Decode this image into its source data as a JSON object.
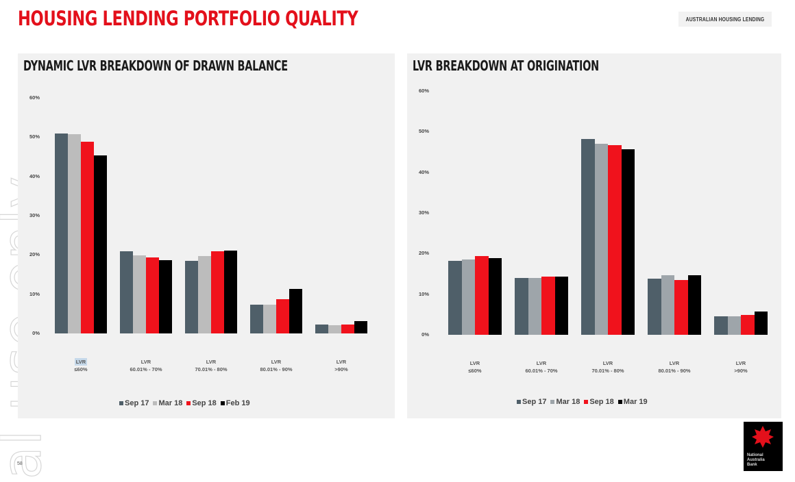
{
  "header": {
    "title": "HOUSING LENDING PORTFOLIO QUALITY",
    "section_tag": "AUSTRALIAN HOUSING LENDING"
  },
  "watermark": "al use only",
  "page_number": "58",
  "logo": {
    "icon": "star-icon",
    "text_lines": [
      "National",
      "Australia",
      "Bank"
    ],
    "color": "#e3101b"
  },
  "colors": {
    "series": [
      "#4f5f69",
      "#bcbcbc",
      "#f0121c",
      "#000000"
    ],
    "series_right": [
      "#4f5f69",
      "#9ea5aa",
      "#f0121c",
      "#000000"
    ],
    "title": "#e3101b",
    "panel_bg": "#f1f1f1"
  },
  "chart_data": [
    {
      "type": "bar",
      "title": "DYNAMIC LVR BREAKDOWN OF DRAWN BALANCE",
      "xlabel": "",
      "ylabel": "",
      "ylim": [
        0,
        60
      ],
      "yticks": [
        "0%",
        "10%",
        "20%",
        "30%",
        "40%",
        "50%",
        "60%"
      ],
      "grid": false,
      "legend_position": "bottom",
      "categories": [
        {
          "line1": "LVR",
          "line2": "≤60%"
        },
        {
          "line1": "LVR",
          "line2": "60.01% - 70%"
        },
        {
          "line1": "LVR",
          "line2": "70.01% - 80%"
        },
        {
          "line1": "LVR",
          "line2": "80.01% - 90%"
        },
        {
          "line1": "LVR",
          "line2": ">90%"
        }
      ],
      "series": [
        {
          "name": "Sep 17",
          "values": [
            50.9,
            20.9,
            18.5,
            7.3,
            2.3
          ]
        },
        {
          "name": "Mar 18",
          "values": [
            50.7,
            19.9,
            19.7,
            7.3,
            2.1
          ]
        },
        {
          "name": "Sep 18",
          "values": [
            48.8,
            19.4,
            20.9,
            8.7,
            2.3
          ]
        },
        {
          "name": "Feb 19",
          "values": [
            45.4,
            18.7,
            21.1,
            11.3,
            3.1
          ]
        }
      ]
    },
    {
      "type": "bar",
      "title": "LVR BREAKDOWN AT ORIGINATION",
      "xlabel": "",
      "ylabel": "",
      "ylim": [
        0,
        60
      ],
      "yticks": [
        "0%",
        "10%",
        "20%",
        "30%",
        "40%",
        "50%",
        "60%"
      ],
      "grid": false,
      "legend_position": "bottom",
      "categories": [
        {
          "line1": "LVR",
          "line2": "≤60%"
        },
        {
          "line1": "LVR",
          "line2": "60.01% - 70%"
        },
        {
          "line1": "LVR",
          "line2": "70.01% - 80%"
        },
        {
          "line1": "LVR",
          "line2": "80.01% - 90%"
        },
        {
          "line1": "LVR",
          "line2": ">90%"
        }
      ],
      "series": [
        {
          "name": "Sep 17",
          "values": [
            18.2,
            14.0,
            48.2,
            13.8,
            4.6
          ]
        },
        {
          "name": "Mar 18",
          "values": [
            18.5,
            14.0,
            47.0,
            14.7,
            4.6
          ]
        },
        {
          "name": "Sep 18",
          "values": [
            19.4,
            14.3,
            46.7,
            13.5,
            4.9
          ]
        },
        {
          "name": "Mar 19",
          "values": [
            18.9,
            14.3,
            45.7,
            14.7,
            5.7
          ]
        }
      ]
    }
  ]
}
